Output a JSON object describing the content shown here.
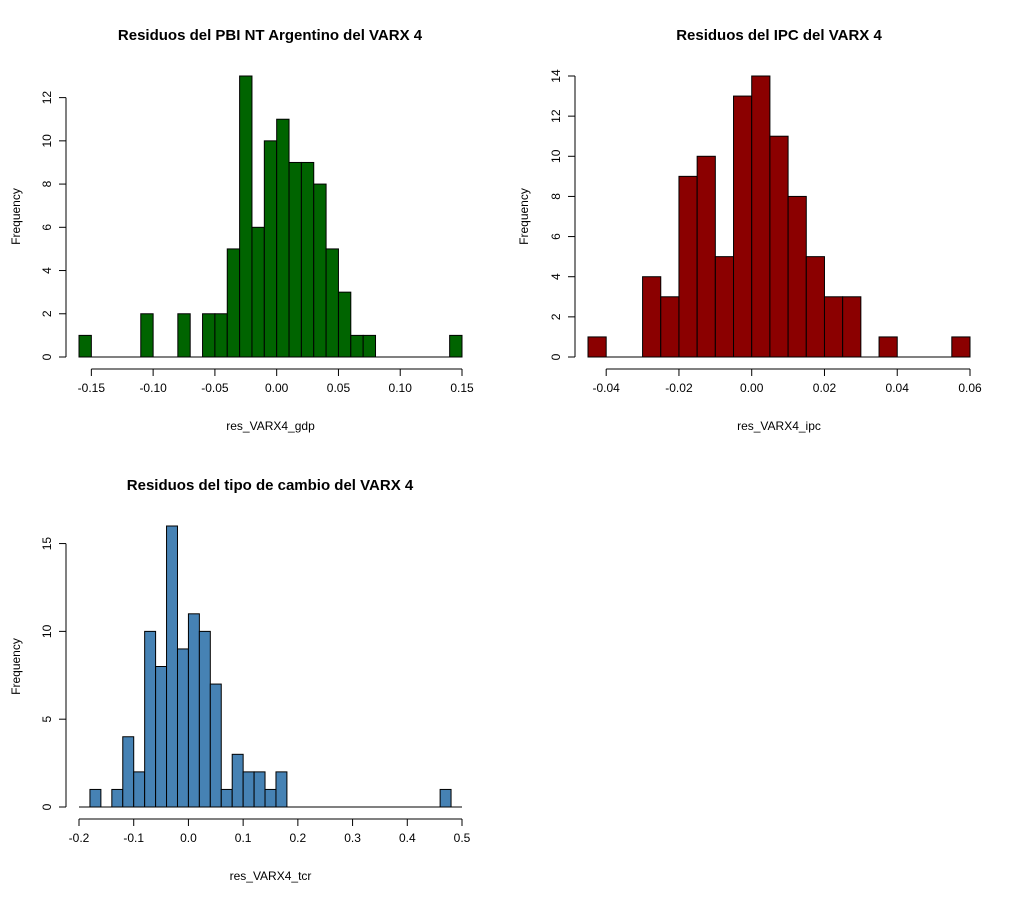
{
  "chart_data": [
    {
      "type": "bar",
      "title": "Residuos del PBI NT Argentino del VARX 4",
      "xlabel": "res_VARX4_gdp",
      "ylabel": "Frequency",
      "color": "#006400",
      "bin_width": 0.01,
      "xlim": [
        -0.16,
        0.15
      ],
      "ylim": [
        0,
        13
      ],
      "x_ticks": [
        -0.15,
        -0.1,
        -0.05,
        0.0,
        0.05,
        0.1,
        0.15
      ],
      "x_tick_labels": [
        "-0.15",
        "-0.10",
        "-0.05",
        "0.00",
        "0.05",
        "0.10",
        "0.15"
      ],
      "y_ticks": [
        0,
        2,
        4,
        6,
        8,
        10,
        12
      ],
      "y_tick_labels": [
        "0",
        "2",
        "4",
        "6",
        "8",
        "10",
        "12"
      ],
      "bins": [
        {
          "x": -0.16,
          "count": 1
        },
        {
          "x": -0.11,
          "count": 2
        },
        {
          "x": -0.08,
          "count": 2
        },
        {
          "x": -0.06,
          "count": 2
        },
        {
          "x": -0.05,
          "count": 2
        },
        {
          "x": -0.04,
          "count": 5
        },
        {
          "x": -0.03,
          "count": 13
        },
        {
          "x": -0.02,
          "count": 6
        },
        {
          "x": -0.01,
          "count": 10
        },
        {
          "x": 0.0,
          "count": 11
        },
        {
          "x": 0.01,
          "count": 9
        },
        {
          "x": 0.02,
          "count": 9
        },
        {
          "x": 0.03,
          "count": 8
        },
        {
          "x": 0.04,
          "count": 5
        },
        {
          "x": 0.05,
          "count": 3
        },
        {
          "x": 0.06,
          "count": 1
        },
        {
          "x": 0.07,
          "count": 1
        },
        {
          "x": 0.14,
          "count": 1
        }
      ]
    },
    {
      "type": "bar",
      "title": "Residuos del IPC del VARX 4",
      "xlabel": "res_VARX4_ipc",
      "ylabel": "Frequency",
      "color": "#8B0000",
      "bin_width": 0.005,
      "xlim": [
        -0.045,
        0.06
      ],
      "ylim": [
        0,
        14
      ],
      "x_ticks": [
        -0.04,
        -0.02,
        0.0,
        0.02,
        0.04,
        0.06
      ],
      "x_tick_labels": [
        "-0.04",
        "-0.02",
        "0.00",
        "0.02",
        "0.04",
        "0.06"
      ],
      "y_ticks": [
        0,
        2,
        4,
        6,
        8,
        10,
        12,
        14
      ],
      "y_tick_labels": [
        "0",
        "2",
        "4",
        "6",
        "8",
        "10",
        "12",
        "14"
      ],
      "bins": [
        {
          "x": -0.045,
          "count": 1
        },
        {
          "x": -0.03,
          "count": 4
        },
        {
          "x": -0.025,
          "count": 3
        },
        {
          "x": -0.02,
          "count": 9
        },
        {
          "x": -0.015,
          "count": 10
        },
        {
          "x": -0.01,
          "count": 5
        },
        {
          "x": -0.005,
          "count": 13
        },
        {
          "x": 0.0,
          "count": 14
        },
        {
          "x": 0.005,
          "count": 11
        },
        {
          "x": 0.01,
          "count": 8
        },
        {
          "x": 0.015,
          "count": 5
        },
        {
          "x": 0.02,
          "count": 3
        },
        {
          "x": 0.025,
          "count": 3
        },
        {
          "x": 0.035,
          "count": 1
        },
        {
          "x": 0.055,
          "count": 1
        }
      ]
    },
    {
      "type": "bar",
      "title": "Residuos del tipo de cambio del VARX 4",
      "xlabel": "res_VARX4_tcr",
      "ylabel": "Frequency",
      "color": "#4682B4",
      "bin_width": 0.02,
      "xlim": [
        -0.2,
        0.5
      ],
      "ylim": [
        0,
        16
      ],
      "x_ticks": [
        -0.2,
        -0.1,
        0.0,
        0.1,
        0.2,
        0.3,
        0.4,
        0.5
      ],
      "x_tick_labels": [
        "-0.2",
        "-0.1",
        "0.0",
        "0.1",
        "0.2",
        "0.3",
        "0.4",
        "0.5"
      ],
      "y_ticks": [
        0,
        5,
        10,
        15
      ],
      "y_tick_labels": [
        "0",
        "5",
        "10",
        "15"
      ],
      "bins": [
        {
          "x": -0.18,
          "count": 1
        },
        {
          "x": -0.14,
          "count": 1
        },
        {
          "x": -0.12,
          "count": 4
        },
        {
          "x": -0.1,
          "count": 2
        },
        {
          "x": -0.08,
          "count": 10
        },
        {
          "x": -0.06,
          "count": 8
        },
        {
          "x": -0.04,
          "count": 16
        },
        {
          "x": -0.02,
          "count": 9
        },
        {
          "x": 0.0,
          "count": 11
        },
        {
          "x": 0.02,
          "count": 10
        },
        {
          "x": 0.04,
          "count": 7
        },
        {
          "x": 0.06,
          "count": 1
        },
        {
          "x": 0.08,
          "count": 3
        },
        {
          "x": 0.1,
          "count": 2
        },
        {
          "x": 0.12,
          "count": 2
        },
        {
          "x": 0.14,
          "count": 1
        },
        {
          "x": 0.16,
          "count": 2
        },
        {
          "x": 0.46,
          "count": 1
        }
      ]
    }
  ]
}
